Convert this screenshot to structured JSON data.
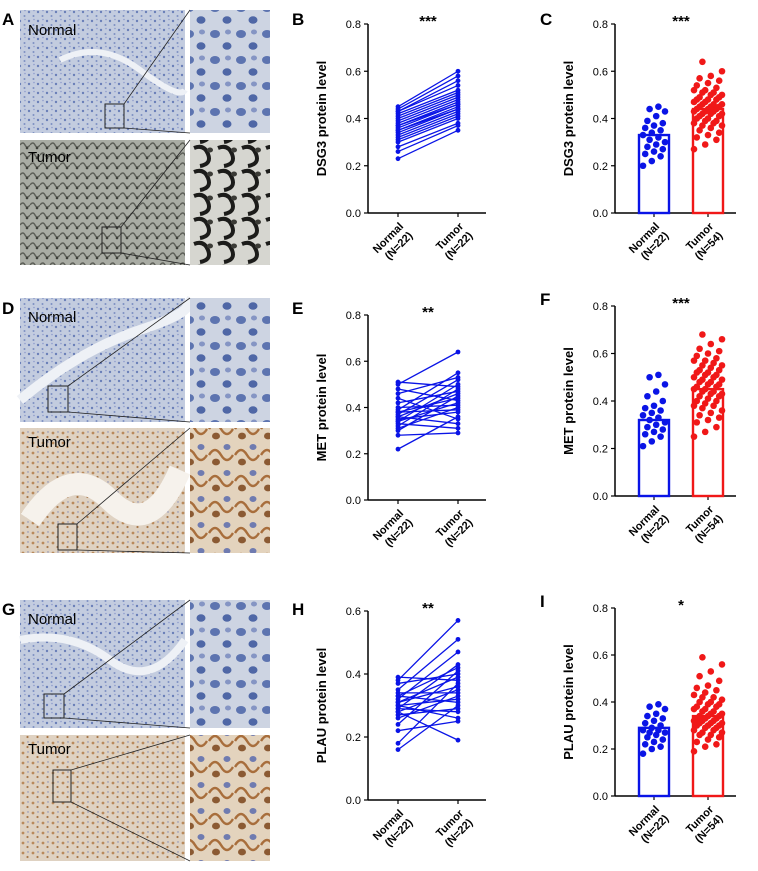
{
  "colors": {
    "normal": "#0a14e6",
    "tumor": "#f01818",
    "ihc_blue_bg": "#b9c3d8",
    "ihc_brown_bg": "#d8c8b6"
  },
  "image_panels": [
    {
      "label": "A",
      "top_label": "Normal",
      "bottom_label": "Tumor"
    },
    {
      "label": "D",
      "top_label": "Normal",
      "bottom_label": "Tumor"
    },
    {
      "label": "G",
      "top_label": "Normal",
      "bottom_label": "Tumor"
    }
  ],
  "chart_data": [
    {
      "panel": "B",
      "type": "line",
      "ylabel": "DSG3 protein level",
      "ylim": [
        0,
        0.8
      ],
      "yticks": [
        "0.0",
        "0.2",
        "0.4",
        "0.6",
        "0.8"
      ],
      "categories": [
        [
          "Normal",
          "(N=22)"
        ],
        [
          "Tumor",
          "(N=22)"
        ]
      ],
      "significance": "***",
      "normal": [
        0.23,
        0.26,
        0.28,
        0.3,
        0.31,
        0.32,
        0.33,
        0.34,
        0.35,
        0.35,
        0.36,
        0.37,
        0.37,
        0.38,
        0.39,
        0.4,
        0.41,
        0.42,
        0.43,
        0.43,
        0.44,
        0.45
      ],
      "tumor": [
        0.35,
        0.37,
        0.38,
        0.4,
        0.41,
        0.42,
        0.43,
        0.44,
        0.44,
        0.45,
        0.46,
        0.46,
        0.47,
        0.48,
        0.49,
        0.5,
        0.51,
        0.52,
        0.54,
        0.56,
        0.58,
        0.6
      ]
    },
    {
      "panel": "C",
      "type": "bar",
      "ylabel": "DSG3 protein level",
      "ylim": [
        0,
        0.8
      ],
      "yticks": [
        "0.0",
        "0.2",
        "0.4",
        "0.6",
        "0.8"
      ],
      "categories": [
        [
          "Normal",
          "(N=22)"
        ],
        [
          "Tumor",
          "(N=54)"
        ]
      ],
      "significance": "***",
      "means": [
        0.33,
        0.44
      ],
      "normal": [
        0.2,
        0.22,
        0.24,
        0.25,
        0.26,
        0.27,
        0.28,
        0.29,
        0.3,
        0.31,
        0.32,
        0.33,
        0.34,
        0.35,
        0.36,
        0.37,
        0.38,
        0.39,
        0.41,
        0.43,
        0.44,
        0.45
      ],
      "tumor": [
        0.27,
        0.29,
        0.31,
        0.32,
        0.33,
        0.34,
        0.35,
        0.36,
        0.37,
        0.37,
        0.38,
        0.38,
        0.39,
        0.39,
        0.4,
        0.4,
        0.41,
        0.41,
        0.42,
        0.42,
        0.42,
        0.43,
        0.43,
        0.43,
        0.44,
        0.44,
        0.44,
        0.45,
        0.45,
        0.45,
        0.46,
        0.46,
        0.46,
        0.47,
        0.47,
        0.48,
        0.48,
        0.48,
        0.49,
        0.49,
        0.5,
        0.5,
        0.51,
        0.51,
        0.52,
        0.52,
        0.53,
        0.54,
        0.55,
        0.56,
        0.57,
        0.58,
        0.6,
        0.64
      ]
    },
    {
      "panel": "E",
      "type": "line",
      "ylabel": "MET protein level",
      "ylim": [
        0,
        0.8
      ],
      "yticks": [
        "0.0",
        "0.2",
        "0.4",
        "0.6",
        "0.8"
      ],
      "categories": [
        [
          "Normal",
          "(N=22)"
        ],
        [
          "Tumor",
          "(N=22)"
        ]
      ],
      "significance": "**",
      "normal": [
        0.22,
        0.28,
        0.3,
        0.31,
        0.32,
        0.33,
        0.34,
        0.34,
        0.35,
        0.36,
        0.36,
        0.37,
        0.38,
        0.38,
        0.39,
        0.4,
        0.42,
        0.44,
        0.46,
        0.48,
        0.5,
        0.51
      ],
      "tumor": [
        0.36,
        0.29,
        0.45,
        0.4,
        0.48,
        0.31,
        0.42,
        0.5,
        0.38,
        0.46,
        0.33,
        0.52,
        0.44,
        0.39,
        0.55,
        0.41,
        0.47,
        0.35,
        0.53,
        0.43,
        0.64,
        0.49
      ]
    },
    {
      "panel": "F",
      "type": "bar",
      "ylabel": "MET protein level",
      "ylim": [
        0,
        0.8
      ],
      "yticks": [
        "0.0",
        "0.2",
        "0.4",
        "0.6",
        "0.8"
      ],
      "categories": [
        [
          "Normal",
          "(N=22)"
        ],
        [
          "Tumor",
          "(N=54)"
        ]
      ],
      "significance": "***",
      "means": [
        0.32,
        0.45
      ],
      "normal": [
        0.21,
        0.23,
        0.25,
        0.26,
        0.27,
        0.28,
        0.29,
        0.3,
        0.31,
        0.32,
        0.33,
        0.34,
        0.35,
        0.36,
        0.37,
        0.38,
        0.4,
        0.42,
        0.44,
        0.47,
        0.5,
        0.51
      ],
      "tumor": [
        0.25,
        0.27,
        0.29,
        0.31,
        0.32,
        0.33,
        0.34,
        0.35,
        0.36,
        0.37,
        0.38,
        0.38,
        0.39,
        0.4,
        0.4,
        0.41,
        0.42,
        0.42,
        0.43,
        0.43,
        0.44,
        0.44,
        0.45,
        0.45,
        0.46,
        0.46,
        0.47,
        0.47,
        0.48,
        0.48,
        0.49,
        0.49,
        0.5,
        0.5,
        0.51,
        0.51,
        0.52,
        0.52,
        0.53,
        0.53,
        0.54,
        0.55,
        0.55,
        0.56,
        0.57,
        0.57,
        0.58,
        0.59,
        0.6,
        0.61,
        0.62,
        0.64,
        0.66,
        0.68
      ]
    },
    {
      "panel": "H",
      "type": "line",
      "ylabel": "PLAU protein level",
      "ylim": [
        0,
        0.6
      ],
      "yticks": [
        "0.0",
        "0.2",
        "0.4",
        "0.6"
      ],
      "categories": [
        [
          "Normal",
          "(N=22)"
        ],
        [
          "Tumor",
          "(N=22)"
        ]
      ],
      "significance": "**",
      "normal": [
        0.16,
        0.18,
        0.22,
        0.24,
        0.26,
        0.27,
        0.28,
        0.28,
        0.29,
        0.29,
        0.3,
        0.3,
        0.31,
        0.31,
        0.32,
        0.33,
        0.33,
        0.34,
        0.35,
        0.37,
        0.38,
        0.39
      ],
      "tumor": [
        0.3,
        0.37,
        0.25,
        0.41,
        0.33,
        0.29,
        0.19,
        0.35,
        0.28,
        0.43,
        0.32,
        0.26,
        0.39,
        0.36,
        0.47,
        0.31,
        0.42,
        0.34,
        0.51,
        0.4,
        0.57,
        0.38
      ]
    },
    {
      "panel": "I",
      "type": "bar",
      "ylabel": "PLAU protein level",
      "ylim": [
        0,
        0.8
      ],
      "yticks": [
        "0.0",
        "0.2",
        "0.4",
        "0.6",
        "0.8"
      ],
      "categories": [
        [
          "Normal",
          "(N=22)"
        ],
        [
          "Tumor",
          "(N=54)"
        ]
      ],
      "significance": "*",
      "means": [
        0.29,
        0.34
      ],
      "normal": [
        0.18,
        0.2,
        0.21,
        0.22,
        0.23,
        0.24,
        0.25,
        0.26,
        0.27,
        0.27,
        0.28,
        0.28,
        0.29,
        0.3,
        0.31,
        0.32,
        0.33,
        0.34,
        0.35,
        0.37,
        0.38,
        0.39
      ],
      "tumor": [
        0.19,
        0.21,
        0.22,
        0.23,
        0.24,
        0.25,
        0.26,
        0.26,
        0.27,
        0.27,
        0.28,
        0.28,
        0.29,
        0.29,
        0.3,
        0.3,
        0.3,
        0.31,
        0.31,
        0.31,
        0.32,
        0.32,
        0.32,
        0.33,
        0.33,
        0.33,
        0.34,
        0.34,
        0.34,
        0.35,
        0.35,
        0.36,
        0.36,
        0.37,
        0.37,
        0.38,
        0.38,
        0.39,
        0.39,
        0.4,
        0.4,
        0.41,
        0.42,
        0.42,
        0.43,
        0.44,
        0.45,
        0.46,
        0.47,
        0.49,
        0.51,
        0.53,
        0.56,
        0.59
      ]
    }
  ]
}
